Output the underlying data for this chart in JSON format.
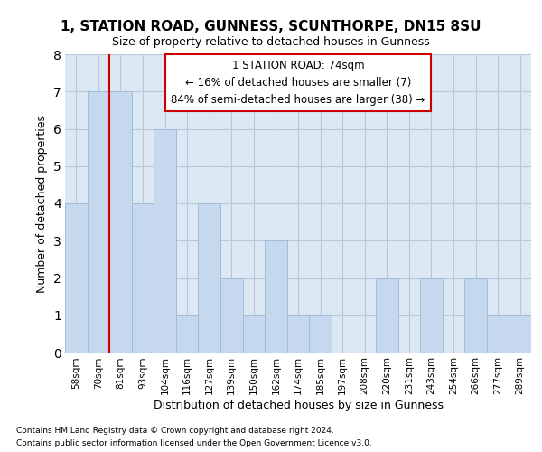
{
  "title_line1": "1, STATION ROAD, GUNNESS, SCUNTHORPE, DN15 8SU",
  "title_line2": "Size of property relative to detached houses in Gunness",
  "xlabel": "Distribution of detached houses by size in Gunness",
  "ylabel": "Number of detached properties",
  "footnote1": "Contains HM Land Registry data © Crown copyright and database right 2024.",
  "footnote2": "Contains public sector information licensed under the Open Government Licence v3.0.",
  "categories": [
    "58sqm",
    "70sqm",
    "81sqm",
    "93sqm",
    "104sqm",
    "116sqm",
    "127sqm",
    "139sqm",
    "150sqm",
    "162sqm",
    "174sqm",
    "185sqm",
    "197sqm",
    "208sqm",
    "220sqm",
    "231sqm",
    "243sqm",
    "254sqm",
    "266sqm",
    "277sqm",
    "289sqm"
  ],
  "values": [
    4,
    7,
    7,
    4,
    6,
    1,
    4,
    2,
    1,
    3,
    1,
    1,
    0,
    0,
    2,
    0,
    2,
    0,
    2,
    1,
    1
  ],
  "bar_color": "#c5d8ee",
  "bar_edge_color": "#a0bcd8",
  "vline_x": 1.5,
  "vline_color": "#cc0000",
  "annotation_line1": "1 STATION ROAD: 74sqm",
  "annotation_line2": "← 16% of detached houses are smaller (7)",
  "annotation_line3": "84% of semi-detached houses are larger (38) →",
  "annotation_box_facecolor": "white",
  "annotation_box_edgecolor": "#cc0000",
  "ylim": [
    0,
    8
  ],
  "yticks": [
    0,
    1,
    2,
    3,
    4,
    5,
    6,
    7,
    8
  ],
  "grid_color": "#b8c8d8",
  "bg_color": "#dce8f4",
  "title1_fontsize": 11,
  "title2_fontsize": 9,
  "xlabel_fontsize": 9,
  "ylabel_fontsize": 9,
  "tick_fontsize": 7.5,
  "footnote_fontsize": 6.5,
  "annotation_fontsize": 8.5
}
